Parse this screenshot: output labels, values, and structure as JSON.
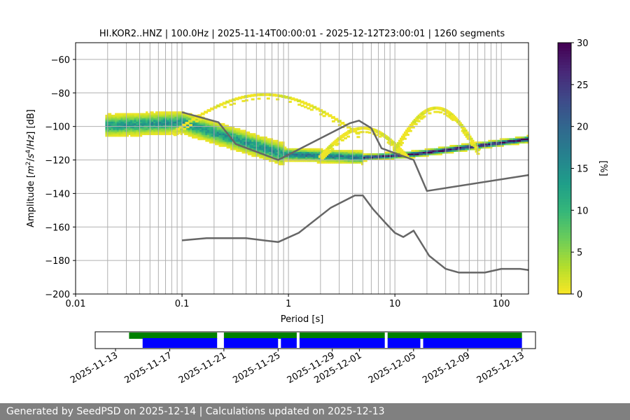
{
  "chart_data": [
    {
      "type": "heatmap",
      "title": "HI.KOR2..HNZ | 100.0Hz | 2025-11-14T00:00:01 - 2025-12-12T23:00:01 | 1260 segments",
      "xlabel": "Period [s]",
      "ylabel_parts": [
        "Amplitude [",
        "m",
        "2",
        "/",
        "s",
        "4",
        "/",
        "Hz",
        "] [dB]"
      ],
      "x_scale": "log",
      "xlim": [
        0.01,
        180
      ],
      "ylim": [
        -200,
        -50
      ],
      "x_ticks": [
        0.01,
        0.1,
        1,
        10,
        100
      ],
      "x_tick_labels": [
        "0.01",
        "0.1",
        "1",
        "10",
        "100"
      ],
      "y_ticks": [
        -200,
        -180,
        -160,
        -140,
        -120,
        -100,
        -80,
        -60
      ],
      "y_tick_labels": [
        "−200",
        "−180",
        "−160",
        "−140",
        "−120",
        "−100",
        "−80",
        "−60"
      ],
      "grid": true,
      "colormap": "viridis_r",
      "colorbar": {
        "label": "[%]",
        "range": [
          0,
          30
        ],
        "ticks": [
          0,
          5,
          10,
          15,
          20,
          25,
          30
        ],
        "tick_labels": [
          "0",
          "5",
          "10",
          "15",
          "20",
          "25",
          "30"
        ]
      },
      "density_bands": [
        {
          "period": [
            0.019,
            0.1
          ],
          "center_db": [
            -100,
            -98
          ],
          "spread_db": 7,
          "peak_pct": 14
        },
        {
          "period": [
            0.1,
            0.9
          ],
          "center_db": [
            -98,
            -117
          ],
          "spread_db": 7,
          "peak_pct": 14
        },
        {
          "period": [
            0.9,
            5
          ],
          "center_db": [
            -117,
            -119
          ],
          "spread_db": 4,
          "peak_pct": 18
        },
        {
          "period": [
            5,
            15
          ],
          "center_db": [
            -119,
            -117
          ],
          "spread_db": 2,
          "peak_pct": 28
        },
        {
          "period": [
            15,
            180
          ],
          "center_db": [
            -117,
            -108
          ],
          "spread_db": 2,
          "peak_pct": 30
        }
      ],
      "scatter_arcs": [
        {
          "period": [
            0.08,
            4.5
          ],
          "peak_db": -81,
          "base_db": -104
        },
        {
          "period": [
            2,
            13
          ],
          "peak_db": -101,
          "base_db": -118
        },
        {
          "period": [
            10,
            60
          ],
          "peak_db": -89,
          "base_db": -114
        }
      ],
      "series": [
        {
          "name": "",
          "color": "#666666",
          "points": [
            [
              0.1,
              -91.5
            ],
            [
              0.22,
              -97.5
            ],
            [
              0.32,
              -110.5
            ],
            [
              0.8,
              -120
            ],
            [
              3.8,
              -98
            ],
            [
              4.6,
              -96.5
            ],
            [
              6,
              -101
            ],
            [
              7.5,
              -113
            ],
            [
              15,
              -120
            ],
            [
              20,
              -138.5
            ],
            [
              180,
              -129
            ]
          ]
        },
        {
          "name": "",
          "color": "#666666",
          "points": [
            [
              0.1,
              -168
            ],
            [
              0.17,
              -166.7
            ],
            [
              0.4,
              -166.7
            ],
            [
              0.8,
              -169
            ],
            [
              1.25,
              -163.5
            ],
            [
              2.5,
              -148.5
            ],
            [
              4.2,
              -141.2
            ],
            [
              5,
              -141.2
            ],
            [
              6.2,
              -149.2
            ],
            [
              8,
              -157
            ],
            [
              10,
              -163.5
            ],
            [
              12,
              -166
            ],
            [
              15,
              -162.2
            ],
            [
              21,
              -177.2
            ],
            [
              30,
              -185
            ],
            [
              40,
              -187.2
            ],
            [
              70,
              -187.2
            ],
            [
              100,
              -185
            ],
            [
              150,
              -185
            ],
            [
              180,
              -185.7
            ]
          ]
        }
      ]
    },
    {
      "type": "timeline",
      "tick_labels": [
        "2025-11-13",
        "2025-11-17",
        "2025-11-21",
        "2025-11-25",
        "2025-11-29",
        "2025-12-01",
        "2025-12-05",
        "2025-12-09",
        "2025-12-13"
      ],
      "tick_dates": [
        "2025-11-13",
        "2025-11-17",
        "2025-11-21",
        "2025-11-25",
        "2025-11-29",
        "2025-12-01",
        "2025-12-05",
        "2025-12-09",
        "2025-12-13"
      ],
      "range": [
        "2025-11-11T12:00",
        "2025-12-14T00:00"
      ],
      "bars": [
        {
          "color": "#008000",
          "row": "top",
          "segments": [
            [
              "2025-11-14T00:00",
              "2025-11-20T12:00"
            ],
            [
              "2025-11-21T00:00",
              "2025-11-26T09:00"
            ],
            [
              "2025-11-26T14:00",
              "2025-12-02T21:00"
            ],
            [
              "2025-12-03T02:00",
              "2025-12-13T00:00"
            ]
          ]
        },
        {
          "color": "#0000ff",
          "row": "bottom",
          "segments": [
            [
              "2025-11-15T00:00",
              "2025-11-20T12:00"
            ],
            [
              "2025-11-21T00:00",
              "2025-11-25T00:00"
            ],
            [
              "2025-11-25T05:00",
              "2025-11-26T09:00"
            ],
            [
              "2025-11-26T14:00",
              "2025-12-02T21:00"
            ],
            [
              "2025-12-03T02:00",
              "2025-12-05T12:00"
            ],
            [
              "2025-12-05T17:00",
              "2025-12-13T00:00"
            ]
          ]
        }
      ]
    }
  ],
  "footer": {
    "text": "Generated by SeedPSD on 2025-12-14 | Calculations updated on 2025-12-13"
  }
}
